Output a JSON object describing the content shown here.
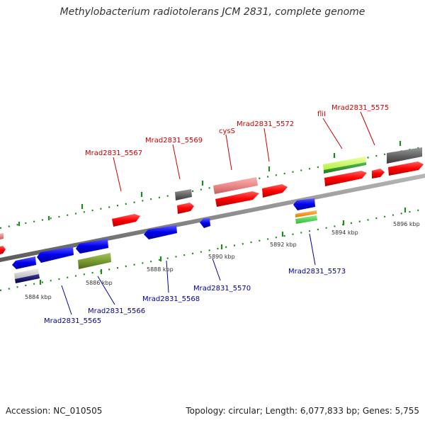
{
  "title": "Methylobacterium radiotolerans JCM 2831, complete genome",
  "footer": {
    "accession": "Accession: NC_010505",
    "summary": "Topology: circular; Length: 6,077,833 bp; Genes: 5,755"
  },
  "colors": {
    "forward_label": "#cc0000",
    "reverse_label": "#000099",
    "forward_gene": "#ff0000",
    "reverse_gene": "#0000ee",
    "backbone": "#888888",
    "tick": "#1a8a1a"
  },
  "tick_labels": [
    {
      "id": "tick-5884",
      "text": "5884 kbp"
    },
    {
      "id": "tick-5886",
      "text": "5886 kbp"
    },
    {
      "id": "tick-5888",
      "text": "5888 kbp"
    },
    {
      "id": "tick-5890",
      "text": "5890 kbp"
    },
    {
      "id": "tick-5892",
      "text": "5892 kbp"
    },
    {
      "id": "tick-5894",
      "text": "5894 kbp"
    },
    {
      "id": "tick-5896",
      "text": "5896 kbp"
    }
  ],
  "forward_labels": [
    {
      "id": "label-mrad2831-5567",
      "text": "Mrad2831_5567"
    },
    {
      "id": "label-mrad2831-5569",
      "text": "Mrad2831_5569"
    },
    {
      "id": "label-cyss",
      "text": "cysS"
    },
    {
      "id": "label-mrad2831-5572",
      "text": "Mrad2831_5572"
    },
    {
      "id": "label-flil",
      "text": "fliI"
    },
    {
      "id": "label-mrad2831-5575",
      "text": "Mrad2831_5575"
    }
  ],
  "reverse_labels": [
    {
      "id": "label-mrad2831-5565",
      "text": "Mrad2831_5565"
    },
    {
      "id": "label-mrad2831-5566",
      "text": "Mrad2831_5566"
    },
    {
      "id": "label-mrad2831-5568",
      "text": "Mrad2831_5568"
    },
    {
      "id": "label-mrad2831-5570",
      "text": "Mrad2831_5570"
    },
    {
      "id": "label-mrad2831-5573",
      "text": "Mrad2831_5573"
    }
  ]
}
